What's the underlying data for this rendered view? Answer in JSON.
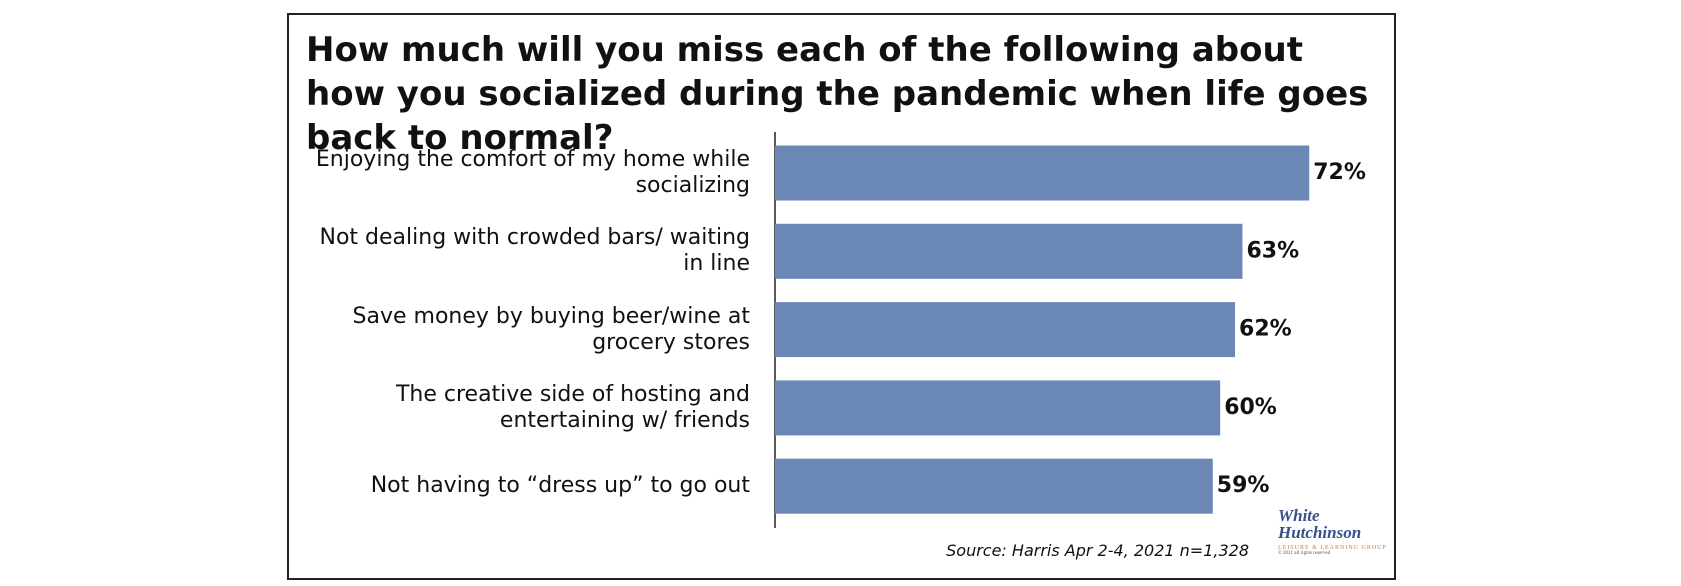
{
  "chart_data": {
    "type": "bar",
    "orientation": "horizontal",
    "title": "How much will you miss each of the following about how you socialized during the pandemic when life goes back to normal?",
    "categories": [
      "Enjoying the comfort of my home while socializing",
      "Not dealing with crowded bars/ waiting in line",
      "Save money by buying beer/wine at grocery stores",
      "The creative side of hosting and entertaining w/ friends",
      "Not having to “dress up” to go out"
    ],
    "values": [
      72,
      63,
      62,
      60,
      59
    ],
    "value_labels": [
      "72%",
      "63%",
      "62%",
      "60%",
      "59%"
    ],
    "color": "#6b87b6",
    "source": "Source: Harris Apr 2-4, 2021 n=1,328",
    "logo": {
      "name": "White Hutchinson",
      "tagline": "LEISURE & LEARNING GROUP",
      "copyright": "© 2021 all rights reserved"
    }
  }
}
